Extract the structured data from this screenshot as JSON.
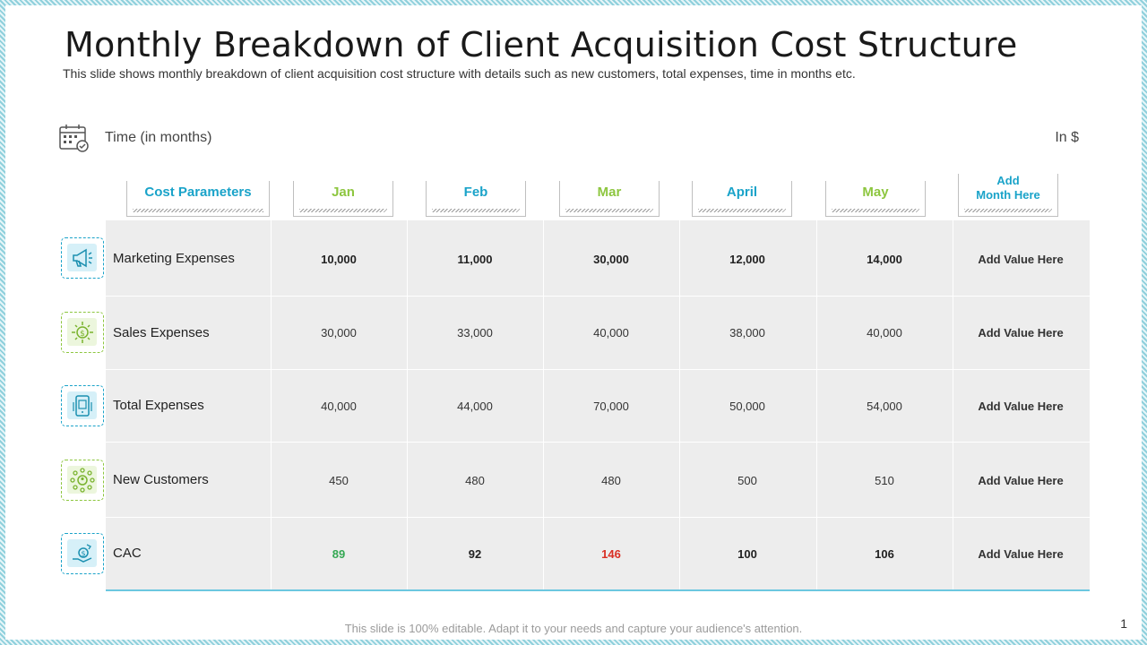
{
  "title": "Monthly Breakdown of Client Acquisition Cost Structure",
  "subtitle": "This slide shows monthly breakdown of client acquisition cost structure with details such as new customers, total expenses, time in months etc.",
  "time_label": "Time (in months)",
  "unit_label": "In $",
  "columns": [
    {
      "label": "Cost Parameters",
      "color": "#1aa3c9"
    },
    {
      "label": "Jan",
      "color": "#8dc63f"
    },
    {
      "label": "Feb",
      "color": "#1aa3c9"
    },
    {
      "label": "Mar",
      "color": "#8dc63f"
    },
    {
      "label": "April",
      "color": "#1aa3c9"
    },
    {
      "label": "May",
      "color": "#8dc63f"
    },
    {
      "label_line1": "Add",
      "label_line2": "Month Here",
      "color": "#1aa3c9"
    }
  ],
  "rows": [
    {
      "label": "Marketing Expenses",
      "icon": "megaphone-icon",
      "values": [
        "10,000",
        "11,000",
        "30,000",
        "12,000",
        "14,000"
      ],
      "add": "Add Value Here"
    },
    {
      "label": "Sales Expenses",
      "icon": "dollar-gear-icon",
      "values": [
        "30,000",
        "33,000",
        "40,000",
        "38,000",
        "40,000"
      ],
      "add": "Add Value Here"
    },
    {
      "label": "Total Expenses",
      "icon": "invoice-phone-icon",
      "values": [
        "40,000",
        "44,000",
        "70,000",
        "50,000",
        "54,000"
      ],
      "add": "Add Value Here"
    },
    {
      "label": "New Customers",
      "icon": "customer-network-icon",
      "values": [
        "450",
        "480",
        "480",
        "500",
        "510"
      ],
      "add": "Add Value Here"
    },
    {
      "label": "CAC",
      "icon": "hand-coin-icon",
      "values": [
        "89",
        "92",
        "146",
        "100",
        "106"
      ],
      "add": "Add Value Here"
    }
  ],
  "colors": {
    "blue": "#1aa3c9",
    "green": "#8dc63f",
    "cac_low": "#34a853",
    "cac_high": "#d93025"
  },
  "footer": "This slide is 100% editable. Adapt it to your needs and capture your audience's attention.",
  "page_number": "1"
}
